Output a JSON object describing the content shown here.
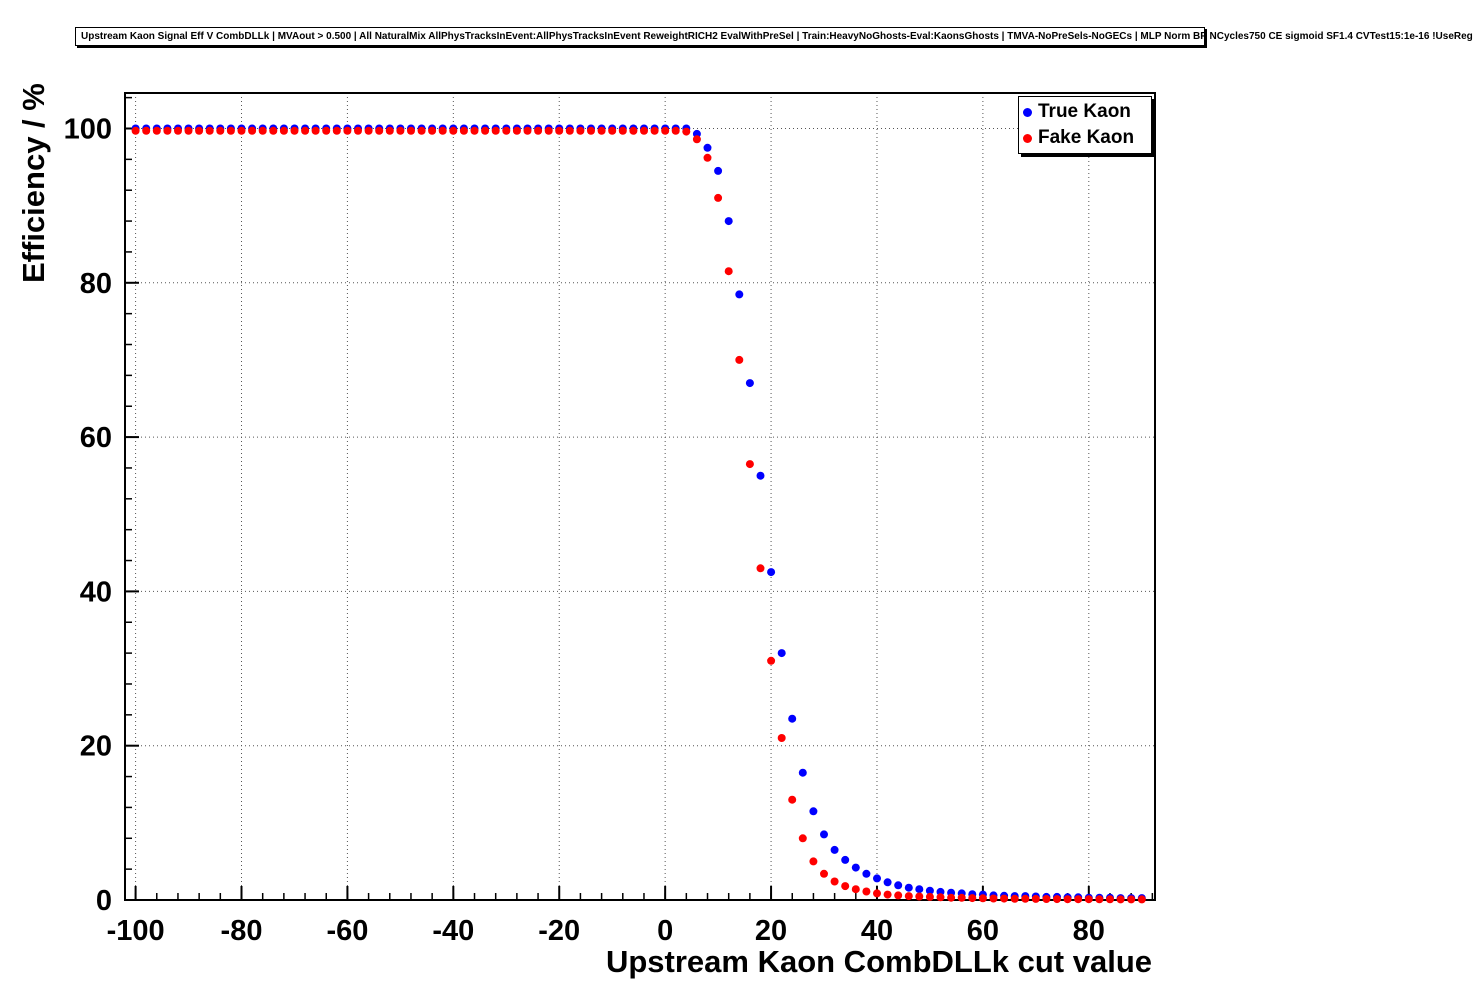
{
  "page": {
    "title_pave": "Upstream Kaon Signal Eff V CombDLLk | MVAout > 0.500 | All NaturalMix AllPhysTracksInEvent:AllPhysTracksInEvent ReweightRICH2 EvalWithPreSel | Train:HeavyNoGhosts-Eval:KaonsGhosts | TMVA-NoPreSels-NoGECs | MLP Norm BP NCycles750 CE sigmoid SF1.4 CVTest15:1e-16 !UseReg"
  },
  "legend": {
    "entries": [
      {
        "label": "True Kaon",
        "color": "#0000ff"
      },
      {
        "label": "Fake Kaon",
        "color": "#ff0000"
      }
    ]
  },
  "chart_data": {
    "type": "scatter",
    "title": "Upstream Kaon Signal Eff V CombDLLk | MVAout > 0.500 | All NaturalMix AllPhysTracksInEvent:AllPhysTracksInEvent ReweightRICH2 EvalWithPreSel | Train:HeavyNoGhosts-Eval:KaonsGhosts | TMVA-NoPreSels-NoGECs | MLP Norm BP NCycles750 CE sigmoid SF1.4 CVTest15:1e-16 !UseReg",
    "xlabel": "Upstream Kaon CombDLLk cut value",
    "ylabel": "Efficiency / %",
    "xlim": [
      -102,
      92.5
    ],
    "ylim": [
      0,
      104.6
    ],
    "xticks": [
      -100,
      -80,
      -60,
      -40,
      -20,
      0,
      20,
      40,
      60,
      80
    ],
    "yticks": [
      0,
      20,
      40,
      60,
      80,
      100
    ],
    "grid": true,
    "legend_position": "top-right",
    "marker_radius": 4,
    "x": [
      -100,
      -98,
      -96,
      -94,
      -92,
      -90,
      -88,
      -86,
      -84,
      -82,
      -80,
      -78,
      -76,
      -74,
      -72,
      -70,
      -68,
      -66,
      -64,
      -62,
      -60,
      -58,
      -56,
      -54,
      -52,
      -50,
      -48,
      -46,
      -44,
      -42,
      -40,
      -38,
      -36,
      -34,
      -32,
      -30,
      -28,
      -26,
      -24,
      -22,
      -20,
      -18,
      -16,
      -14,
      -12,
      -10,
      -8,
      -6,
      -4,
      -2,
      0,
      2,
      4,
      6,
      8,
      10,
      12,
      14,
      16,
      18,
      20,
      22,
      24,
      26,
      28,
      30,
      32,
      34,
      36,
      38,
      40,
      42,
      44,
      46,
      48,
      50,
      52,
      54,
      56,
      58,
      60,
      62,
      64,
      66,
      68,
      70,
      72,
      74,
      76,
      78,
      80,
      82,
      84,
      86,
      88,
      90
    ],
    "series": [
      {
        "name": "True Kaon",
        "color": "#0000ff",
        "values": [
          100,
          100,
          100,
          100,
          100,
          100,
          100,
          100,
          100,
          100,
          100,
          100,
          100,
          100,
          100,
          100,
          100,
          100,
          100,
          100,
          100,
          100,
          100,
          100,
          100,
          100,
          100,
          100,
          100,
          100,
          100,
          100,
          100,
          100,
          100,
          100,
          100,
          100,
          100,
          100,
          100,
          100,
          100,
          100,
          100,
          100,
          100,
          100,
          100,
          100,
          100,
          100,
          100,
          99.3,
          97.5,
          94.5,
          88.0,
          78.5,
          67.0,
          55.0,
          42.5,
          32.0,
          23.5,
          16.5,
          11.5,
          8.5,
          6.5,
          5.2,
          4.2,
          3.4,
          2.8,
          2.3,
          1.9,
          1.6,
          1.4,
          1.2,
          1.05,
          0.95,
          0.85,
          0.75,
          0.7,
          0.6,
          0.55,
          0.5,
          0.5,
          0.45,
          0.4,
          0.4,
          0.35,
          0.35,
          0.3,
          0.3,
          0.3,
          0.25,
          0.25,
          0.25
        ]
      },
      {
        "name": "Fake Kaon",
        "color": "#ff0000",
        "values": [
          99.7,
          99.7,
          99.7,
          99.7,
          99.7,
          99.7,
          99.7,
          99.7,
          99.7,
          99.7,
          99.7,
          99.7,
          99.7,
          99.7,
          99.7,
          99.7,
          99.7,
          99.7,
          99.7,
          99.7,
          99.7,
          99.7,
          99.7,
          99.7,
          99.7,
          99.7,
          99.7,
          99.7,
          99.7,
          99.7,
          99.7,
          99.7,
          99.7,
          99.7,
          99.7,
          99.7,
          99.7,
          99.7,
          99.7,
          99.7,
          99.7,
          99.7,
          99.7,
          99.7,
          99.7,
          99.7,
          99.7,
          99.7,
          99.7,
          99.7,
          99.7,
          99.7,
          99.6,
          98.6,
          96.2,
          91.0,
          81.5,
          70.0,
          56.5,
          43.0,
          31.0,
          21.0,
          13.0,
          8.0,
          5.0,
          3.4,
          2.4,
          1.8,
          1.4,
          1.1,
          0.85,
          0.7,
          0.6,
          0.5,
          0.45,
          0.4,
          0.35,
          0.3,
          0.28,
          0.25,
          0.22,
          0.2,
          0.18,
          0.16,
          0.15,
          0.14,
          0.13,
          0.12,
          0.11,
          0.1,
          0.1,
          0.09,
          0.09,
          0.08,
          0.08,
          0.08
        ]
      }
    ]
  }
}
